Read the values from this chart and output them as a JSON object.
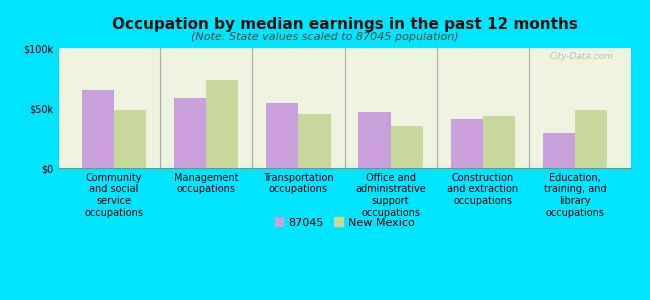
{
  "title": "Occupation by median earnings in the past 12 months",
  "subtitle": "(Note: State values scaled to 87045 population)",
  "categories": [
    "Community\nand social\nservice\noccupations",
    "Management\noccupations",
    "Transportation\noccupations",
    "Office and\nadministrative\nsupport\noccupations",
    "Construction\nand extraction\noccupations",
    "Education,\ntraining, and\nlibrary\noccupations"
  ],
  "values_87045": [
    65000,
    58000,
    54000,
    47000,
    41000,
    29000
  ],
  "values_nm": [
    48000,
    73000,
    45000,
    35000,
    43000,
    48000
  ],
  "color_87045": "#c9a0dc",
  "color_nm": "#c8d89a",
  "background_color": "#00e5ff",
  "plot_bg": "#eef3e0",
  "ylim": [
    0,
    100000
  ],
  "yticks": [
    0,
    50000,
    100000
  ],
  "ytick_labels": [
    "$0",
    "$50k",
    "$100k"
  ],
  "legend_87045": "87045",
  "legend_nm": "New Mexico",
  "bar_width": 0.35,
  "title_fontsize": 11,
  "subtitle_fontsize": 8,
  "tick_fontsize": 7,
  "legend_fontsize": 8
}
